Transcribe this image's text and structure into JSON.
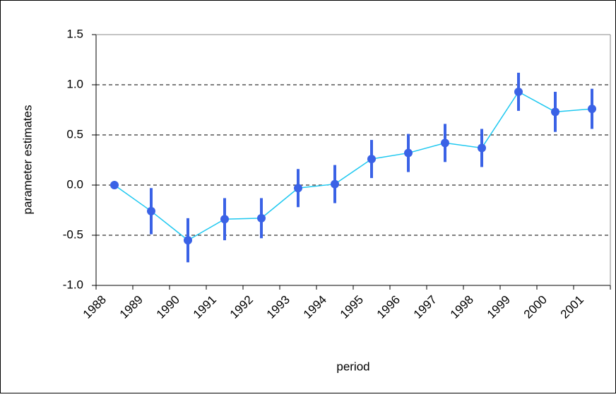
{
  "chart_data": {
    "type": "line",
    "x_label": "period",
    "y_label": "parameter estimates",
    "categories": [
      "1988",
      "1989",
      "1990",
      "1991",
      "1992",
      "1993",
      "1994",
      "1995",
      "1996",
      "1997",
      "1998",
      "1999",
      "2000",
      "2001"
    ],
    "series": [
      {
        "color": "#1ec8f0",
        "marker_color": "#3a62e6",
        "values": [
          0,
          -0.26,
          -0.55,
          -0.34,
          -0.33,
          -0.03,
          0.01,
          0.26,
          0.32,
          0.42,
          0.37,
          0.93,
          0.73,
          0.76
        ],
        "errors": [
          null,
          0.23,
          0.22,
          0.21,
          0.2,
          0.19,
          0.19,
          0.19,
          0.19,
          0.19,
          0.19,
          0.19,
          0.2,
          0.2
        ]
      }
    ],
    "ylim": [
      -1,
      1.5
    ],
    "yticks": [
      {
        "value": -1,
        "label": "-1.0"
      },
      -0.5,
      {
        "value": 0,
        "label": "0.0"
      },
      0.5,
      {
        "value": 1,
        "label": "1.0"
      },
      1.5
    ],
    "grid": true
  }
}
